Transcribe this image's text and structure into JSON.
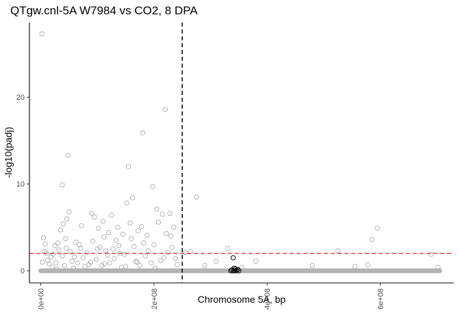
{
  "chart_data": {
    "type": "scatter",
    "title": "QTgw.cnl-5A W7984 vs CO2, 8 DPA",
    "xlabel": "Chromosome 5A, bp",
    "ylabel": "-log10(padj)",
    "xlim": [
      -20000000,
      730000000
    ],
    "ylim": [
      -1.4,
      28.6
    ],
    "xticks": [
      {
        "value": 0,
        "label": "0e+00"
      },
      {
        "value": 200000000,
        "label": "2e+08"
      },
      {
        "value": 400000000,
        "label": "4e+08"
      },
      {
        "value": 600000000,
        "label": "6e+08"
      }
    ],
    "yticks": [
      {
        "value": 0,
        "label": "0"
      },
      {
        "value": 10,
        "label": "10"
      },
      {
        "value": 20,
        "label": "20"
      }
    ],
    "reference_lines": [
      {
        "orientation": "vertical",
        "value": 250000000,
        "style": "dashed",
        "color": "#000000"
      },
      {
        "orientation": "horizontal",
        "value": 2,
        "style": "dashed",
        "color": "#ff0000"
      }
    ],
    "grid": false,
    "legend": "none",
    "colors": {
      "genome_wide": "#b3b3b3",
      "qtl_interval": "#000000"
    },
    "series": [
      {
        "color": "#b3b3b3",
        "points": [
          [
            2000000,
            27.3
          ],
          [
            5000000,
            3.8
          ],
          [
            8000000,
            3.1
          ],
          [
            10000000,
            2.0
          ],
          [
            12000000,
            1.2
          ],
          [
            15000000,
            0.8
          ],
          [
            18000000,
            1.6
          ],
          [
            20000000,
            0.4
          ],
          [
            25000000,
            2.9
          ],
          [
            28000000,
            0.2
          ],
          [
            32000000,
            2.4
          ],
          [
            38000000,
            1.7
          ],
          [
            42000000,
            0.6
          ],
          [
            48000000,
            13.3
          ],
          [
            38000000,
            9.9
          ],
          [
            50000000,
            6.8
          ],
          [
            46000000,
            6.0
          ],
          [
            40000000,
            5.4
          ],
          [
            44000000,
            3.7
          ],
          [
            30000000,
            3.2
          ],
          [
            35000000,
            4.7
          ],
          [
            52000000,
            2.2
          ],
          [
            55000000,
            1.1
          ],
          [
            58000000,
            0.3
          ],
          [
            62000000,
            3.3
          ],
          [
            65000000,
            0.9
          ],
          [
            70000000,
            2.6
          ],
          [
            72000000,
            5.2
          ],
          [
            75000000,
            1.5
          ],
          [
            78000000,
            0.5
          ],
          [
            82000000,
            2.1
          ],
          [
            85000000,
            0.7
          ],
          [
            90000000,
            6.6
          ],
          [
            95000000,
            6.2
          ],
          [
            92000000,
            3.4
          ],
          [
            98000000,
            1.3
          ],
          [
            102000000,
            4.9
          ],
          [
            105000000,
            2.7
          ],
          [
            108000000,
            0.6
          ],
          [
            110000000,
            5.7
          ],
          [
            112000000,
            3.9
          ],
          [
            115000000,
            2.3
          ],
          [
            118000000,
            1.8
          ],
          [
            120000000,
            4.4
          ],
          [
            122000000,
            0.9
          ],
          [
            125000000,
            6.4
          ],
          [
            128000000,
            2.5
          ],
          [
            130000000,
            1.4
          ],
          [
            133000000,
            3.5
          ],
          [
            136000000,
            5.0
          ],
          [
            140000000,
            2.0
          ],
          [
            143000000,
            0.4
          ],
          [
            145000000,
            4.2
          ],
          [
            148000000,
            1.9
          ],
          [
            152000000,
            7.8
          ],
          [
            155000000,
            12.0
          ],
          [
            158000000,
            5.5
          ],
          [
            160000000,
            3.7
          ],
          [
            162000000,
            8.4
          ],
          [
            165000000,
            2.8
          ],
          [
            168000000,
            1.1
          ],
          [
            172000000,
            4.6
          ],
          [
            175000000,
            0.6
          ],
          [
            178000000,
            5.1
          ],
          [
            180000000,
            15.9
          ],
          [
            182000000,
            3.2
          ],
          [
            185000000,
            1.7
          ],
          [
            190000000,
            2.3
          ],
          [
            195000000,
            0.9
          ],
          [
            198000000,
            9.7
          ],
          [
            200000000,
            3.0
          ],
          [
            205000000,
            7.1
          ],
          [
            208000000,
            5.6
          ],
          [
            212000000,
            1.2
          ],
          [
            215000000,
            6.5
          ],
          [
            220000000,
            18.6
          ],
          [
            222000000,
            4.3
          ],
          [
            225000000,
            2.1
          ],
          [
            228000000,
            6.6
          ],
          [
            230000000,
            4.0
          ],
          [
            232000000,
            2.7
          ],
          [
            235000000,
            5.0
          ],
          [
            238000000,
            1.4
          ],
          [
            241000000,
            0.7
          ],
          [
            3000000,
            1.0
          ],
          [
            7000000,
            2.2
          ],
          [
            22000000,
            1.9
          ],
          [
            27000000,
            0.9
          ],
          [
            45000000,
            2.6
          ],
          [
            60000000,
            1.6
          ],
          [
            68000000,
            3.0
          ],
          [
            88000000,
            1.0
          ],
          [
            100000000,
            2.5
          ],
          [
            113000000,
            0.8
          ],
          [
            138000000,
            2.9
          ],
          [
            150000000,
            0.5
          ],
          [
            170000000,
            1.0
          ],
          [
            188000000,
            4.1
          ],
          [
            202000000,
            0.3
          ],
          [
            218000000,
            1.5
          ],
          [
            255000000,
            2.1
          ],
          [
            265000000,
            2.2
          ],
          [
            275000000,
            8.5
          ],
          [
            290000000,
            0.6
          ],
          [
            310000000,
            1.1
          ],
          [
            330000000,
            2.6
          ],
          [
            355000000,
            0.4
          ],
          [
            380000000,
            1.1
          ],
          [
            480000000,
            0.6
          ],
          [
            525000000,
            2.3
          ],
          [
            555000000,
            0.5
          ],
          [
            578000000,
            0.7
          ],
          [
            585000000,
            3.6
          ],
          [
            595000000,
            4.9
          ],
          [
            690000000,
            1.9
          ],
          [
            702000000,
            0.4
          ]
        ]
      },
      {
        "color": "#000000",
        "points": [
          [
            340000000,
            1.5
          ],
          [
            342000000,
            0.3
          ],
          [
            338000000,
            0.1
          ],
          [
            344000000,
            0.2
          ],
          [
            346000000,
            0.05
          ],
          [
            348000000,
            0.15
          ],
          [
            350000000,
            0.0
          ],
          [
            336000000,
            0.0
          ],
          [
            343000000,
            0.0
          ],
          [
            341000000,
            0.0
          ]
        ]
      }
    ],
    "baseline": {
      "color": "#b3b3b3",
      "value": 0,
      "x_range": [
        0,
        705000000
      ]
    }
  }
}
